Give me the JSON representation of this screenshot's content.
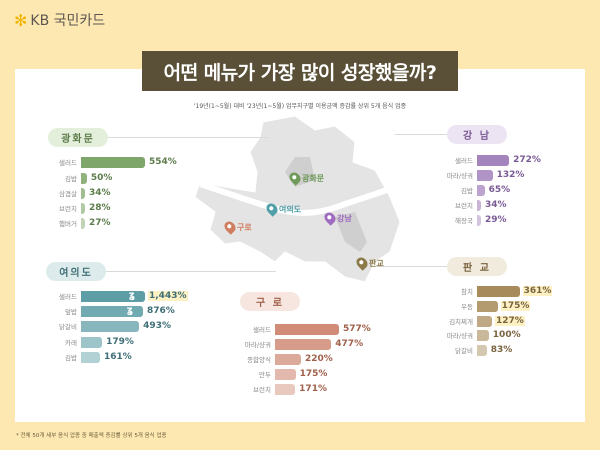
{
  "logo": {
    "mark": "✻",
    "text": "KB 국민카드"
  },
  "title": "어떤 메뉴가 가장 많이 성장했을까?",
  "subtitle": "'19년(1~5월) 대비 '23년(1~5월) 업무지구별 이용금액 증감률 상위 5개 음식 업종",
  "footnote": "* 전체 50개 세부 음식 업종 중 매출액 증감률 상위 5개 음식 업종",
  "map_pins": [
    {
      "label": "광화문",
      "color": "#6f9a5a"
    },
    {
      "label": "여의도",
      "color": "#4f9fa8"
    },
    {
      "label": "구로",
      "color": "#d07e60"
    },
    {
      "label": "강남",
      "color": "#a06cc0"
    },
    {
      "label": "판교",
      "color": "#8c7a4a"
    }
  ],
  "chart_data": [
    {
      "type": "bar",
      "title": "광화문",
      "color": "#7fa66a",
      "pill_bg": "#e3eedb",
      "pill_color": "#5e7d4c",
      "categories": [
        "샐러드",
        "김밥",
        "삼겹살",
        "브런치",
        "햄버거"
      ],
      "values": [
        554,
        50,
        34,
        28,
        27
      ],
      "labels": [
        "554%",
        "50%",
        "34%",
        "28%",
        "27%"
      ],
      "highlight": [
        false,
        false,
        false,
        false,
        false
      ],
      "broken": [
        false,
        false,
        false,
        false,
        false
      ]
    },
    {
      "type": "bar",
      "title": "여의도",
      "color": "#5d9ea6",
      "pill_bg": "#ddebec",
      "pill_color": "#3f6f76",
      "categories": [
        "샐러드",
        "덮밥",
        "닭갈비",
        "카레",
        "김밥"
      ],
      "values": [
        1443,
        876,
        493,
        179,
        161
      ],
      "labels": [
        "1,443%",
        "876%",
        "493%",
        "179%",
        "161%"
      ],
      "highlight": [
        true,
        false,
        false,
        false,
        false
      ],
      "broken": [
        true,
        true,
        false,
        false,
        false
      ]
    },
    {
      "type": "bar",
      "title": "구 로",
      "color": "#d08c77",
      "pill_bg": "#f7e6df",
      "pill_color": "#a0604a",
      "categories": [
        "샐러드",
        "마라/샹궈",
        "종합양식",
        "만두",
        "브런치"
      ],
      "values": [
        577,
        477,
        220,
        175,
        171
      ],
      "labels": [
        "577%",
        "477%",
        "220%",
        "175%",
        "171%"
      ],
      "highlight": [
        false,
        false,
        false,
        false,
        false
      ],
      "broken": [
        false,
        false,
        false,
        false,
        false
      ]
    },
    {
      "type": "bar",
      "title": "강 남",
      "color": "#a484bd",
      "pill_bg": "#ede4f3",
      "pill_color": "#7a5a94",
      "categories": [
        "샐러드",
        "마라/샹궈",
        "김밥",
        "브런치",
        "해장국"
      ],
      "values": [
        272,
        132,
        65,
        34,
        29
      ],
      "labels": [
        "272%",
        "132%",
        "65%",
        "34%",
        "29%"
      ],
      "highlight": [
        false,
        false,
        false,
        false,
        false
      ],
      "broken": [
        false,
        false,
        false,
        false,
        false
      ]
    },
    {
      "type": "bar",
      "title": "판 교",
      "color": "#a88b5a",
      "pill_bg": "#f1ebdd",
      "pill_color": "#7a6440",
      "categories": [
        "참치",
        "우동",
        "김치찌개",
        "마라/샹궈",
        "닭갈비"
      ],
      "values": [
        361,
        175,
        127,
        100,
        83
      ],
      "labels": [
        "361%",
        "175%",
        "127%",
        "100%",
        "83%"
      ],
      "highlight": [
        true,
        true,
        true,
        false,
        false
      ],
      "broken": [
        false,
        false,
        false,
        false,
        false
      ]
    }
  ]
}
